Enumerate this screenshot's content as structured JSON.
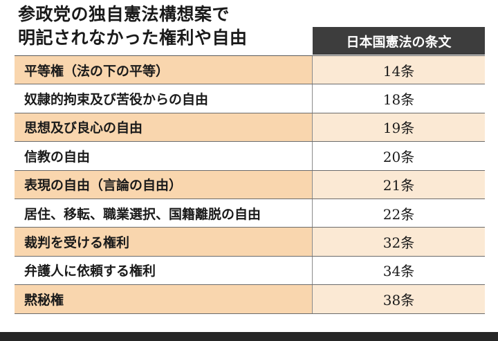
{
  "title_lines": [
    "参政党の独自憲法構想案で",
    "明記されなかった権利や自由"
  ],
  "column_header": "日本国憲法の条文",
  "rows": [
    {
      "right": "平等権（法の下の平等）",
      "article": "14条"
    },
    {
      "right": "奴隷的拘束及び苦役からの自由",
      "article": "18条"
    },
    {
      "right": "思想及び良心の自由",
      "article": "19条"
    },
    {
      "right": "信教の自由",
      "article": "20条"
    },
    {
      "right": "表現の自由（言論の自由）",
      "article": "21条"
    },
    {
      "right": "居住、移転、職業選択、国籍離脱の自由",
      "article": "22条"
    },
    {
      "right": "裁判を受ける権利",
      "article": "32条"
    },
    {
      "right": "弁護人に依頼する権利",
      "article": "34条"
    },
    {
      "right": "黙秘権",
      "article": "38条"
    }
  ]
}
